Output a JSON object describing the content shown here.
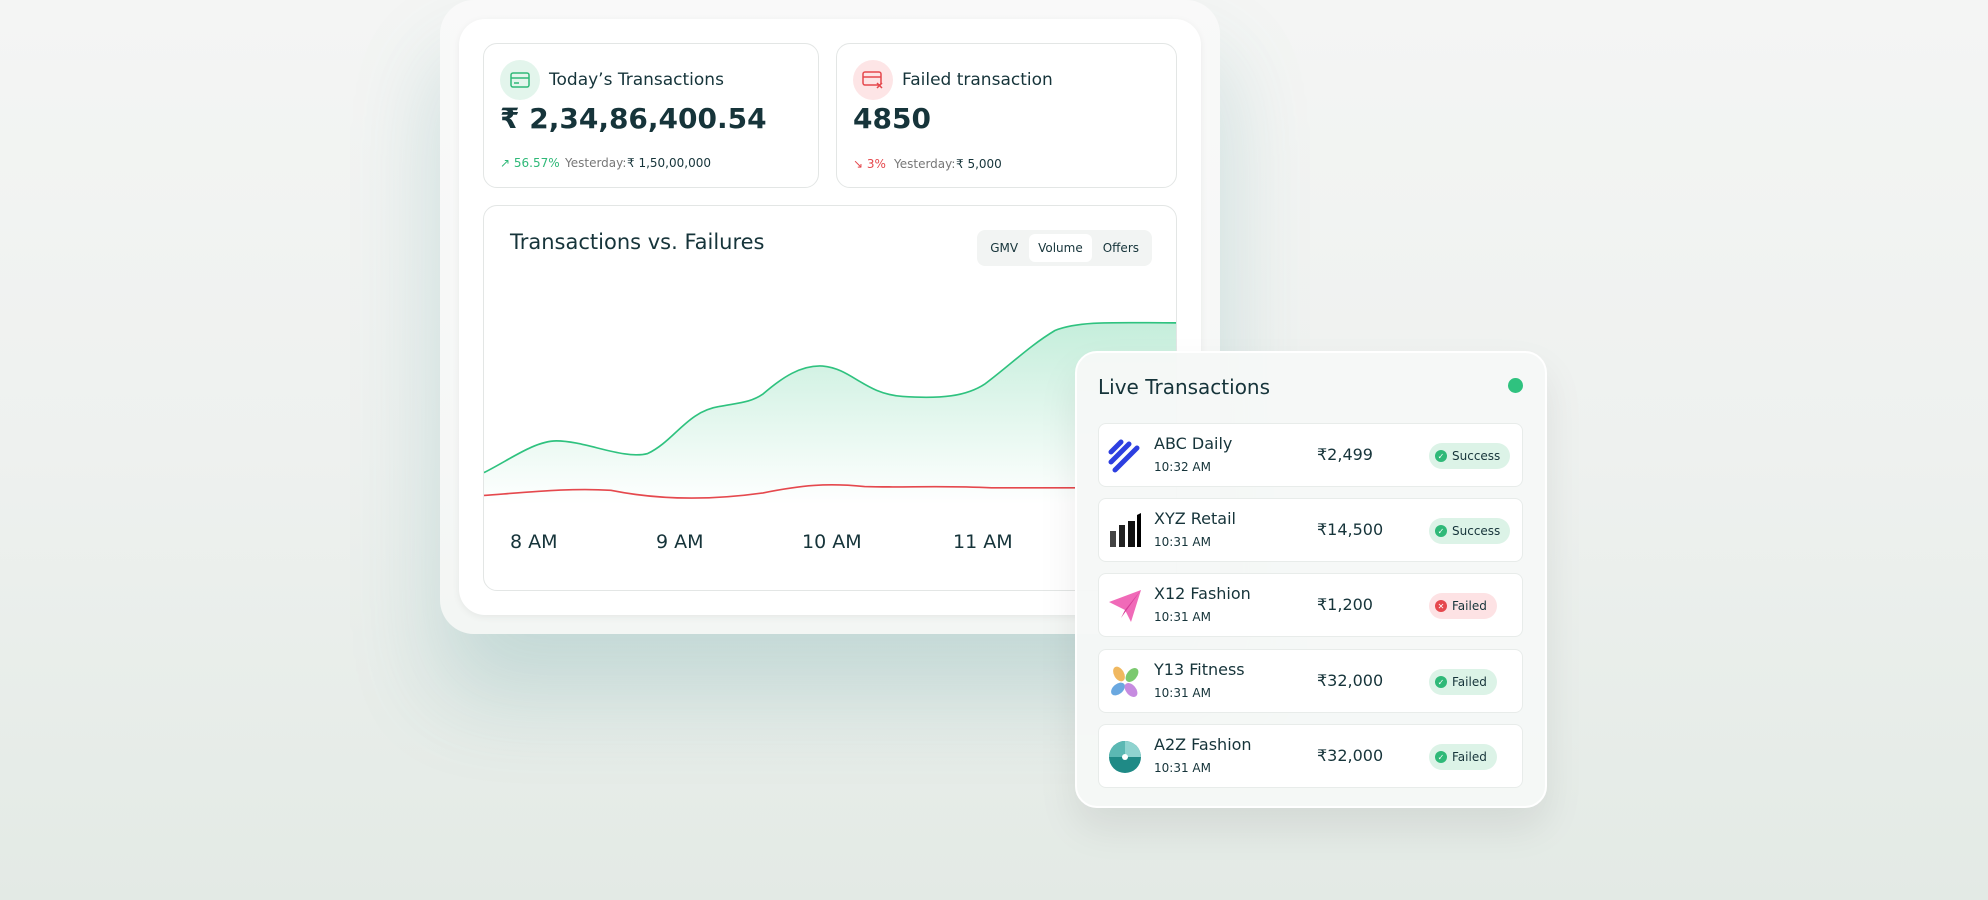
{
  "cards": [
    {
      "title": "Today’s Transactions",
      "value": "₹ 2,34,86,400.54",
      "change": "56.57%",
      "yesterday_label": "Yesterday:",
      "yesterday_value": "₹ 1,50,00,000"
    },
    {
      "title": "Failed transaction",
      "value": "4850",
      "change": "3%",
      "yesterday_label": "Yesterday:",
      "yesterday_value": "₹ 5,000"
    }
  ],
  "chart": {
    "title": "Transactions vs. Failures",
    "tabs": [
      "GMV",
      "Volume",
      "Offers"
    ],
    "x_labels": [
      "8 AM",
      "9 AM",
      "10 AM",
      "11 AM"
    ]
  },
  "live": {
    "title": "Live Transactions",
    "rows": [
      {
        "name": "ABC Daily",
        "time": "10:32 AM",
        "amount": "₹2,499",
        "status": "Success"
      },
      {
        "name": "XYZ Retail",
        "time": "10:31 AM",
        "amount": "₹14,500",
        "status": "Success"
      },
      {
        "name": "X12 Fashion",
        "time": "10:31 AM",
        "amount": "₹1,200",
        "status": "Failed"
      },
      {
        "name": "Y13 Fitness",
        "time": "10:31 AM",
        "amount": "₹32,000",
        "status": "Failed"
      },
      {
        "name": "A2Z Fashion",
        "time": "10:31 AM",
        "amount": "₹32,000",
        "status": "Failed"
      }
    ]
  }
}
